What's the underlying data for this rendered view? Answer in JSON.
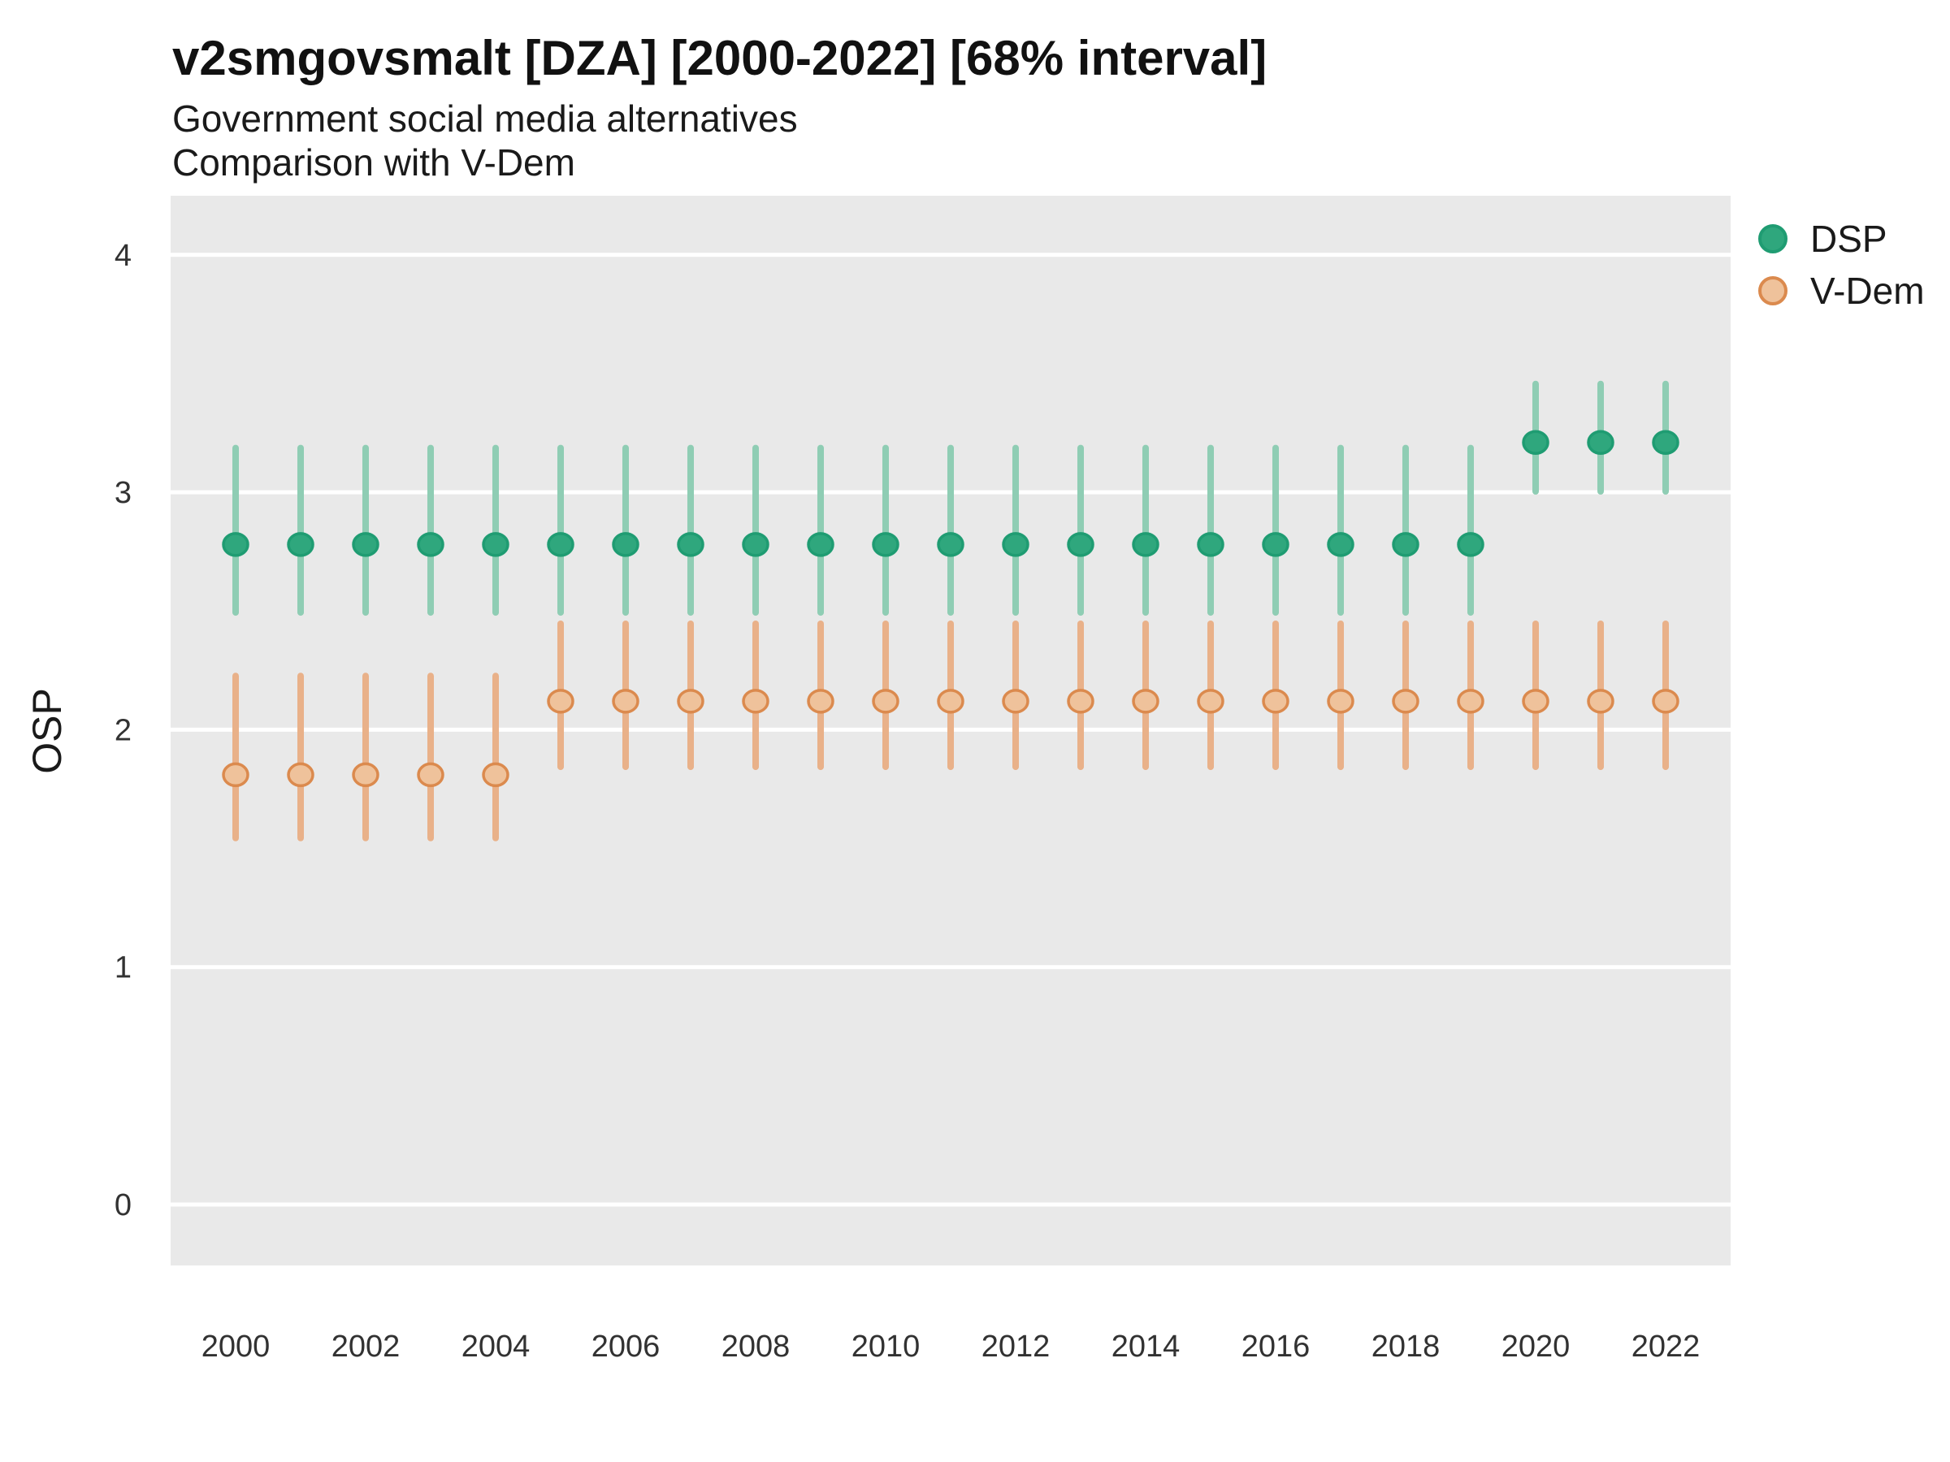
{
  "chart_data": {
    "type": "pointrange",
    "title": "v2smgovsmalt [DZA] [2000-2022] [68% interval]",
    "subtitle1": "Government social media alternatives",
    "subtitle2": "Comparison with V-Dem",
    "ylabel": "OSP",
    "xlabel": "",
    "x": [
      2000,
      2001,
      2002,
      2003,
      2004,
      2005,
      2006,
      2007,
      2008,
      2009,
      2010,
      2011,
      2012,
      2013,
      2014,
      2015,
      2016,
      2017,
      2018,
      2019,
      2020,
      2021,
      2022
    ],
    "x_tick_labels": [
      "2000",
      "2002",
      "2004",
      "2006",
      "2008",
      "2010",
      "2012",
      "2014",
      "2016",
      "2018",
      "2020",
      "2022"
    ],
    "x_tick_years": [
      2000,
      2002,
      2004,
      2006,
      2008,
      2010,
      2012,
      2014,
      2016,
      2018,
      2020,
      2022
    ],
    "y_tick_labels": [
      "0",
      "1",
      "2",
      "3",
      "4"
    ],
    "y_tick_values": [
      0,
      1,
      2,
      3,
      4
    ],
    "ylim": [
      -0.26,
      4.25
    ],
    "grid": "horizontal-major-only",
    "legend_position": "right-top",
    "panel_bg": "#E9E9E9",
    "grid_color": "#FFFFFF",
    "series": [
      {
        "name": "DSP",
        "bar_color": "#8FCDB4",
        "point_fill": "#2FA77D",
        "point_stroke": "#1F9C72",
        "est": [
          2.78,
          2.78,
          2.78,
          2.78,
          2.78,
          2.78,
          2.78,
          2.78,
          2.78,
          2.78,
          2.78,
          2.78,
          2.78,
          2.78,
          2.78,
          2.78,
          2.78,
          2.78,
          2.78,
          2.78,
          3.21,
          3.21,
          3.21
        ],
        "lo": [
          2.48,
          2.48,
          2.48,
          2.48,
          2.48,
          2.48,
          2.48,
          2.48,
          2.48,
          2.48,
          2.48,
          2.48,
          2.48,
          2.48,
          2.48,
          2.48,
          2.48,
          2.48,
          2.48,
          2.48,
          2.99,
          2.99,
          2.99
        ],
        "hi": [
          3.2,
          3.2,
          3.2,
          3.2,
          3.2,
          3.2,
          3.2,
          3.2,
          3.2,
          3.2,
          3.2,
          3.2,
          3.2,
          3.2,
          3.2,
          3.2,
          3.2,
          3.2,
          3.2,
          3.2,
          3.47,
          3.47,
          3.47
        ]
      },
      {
        "name": "V-Dem",
        "bar_color": "#E9B189",
        "point_fill": "#EFC29B",
        "point_stroke": "#DB8A4E",
        "est": [
          1.81,
          1.81,
          1.81,
          1.81,
          1.81,
          2.12,
          2.12,
          2.12,
          2.12,
          2.12,
          2.12,
          2.12,
          2.12,
          2.12,
          2.12,
          2.12,
          2.12,
          2.12,
          2.12,
          2.12,
          2.12,
          2.12,
          2.12
        ],
        "lo": [
          1.53,
          1.53,
          1.53,
          1.53,
          1.53,
          1.83,
          1.83,
          1.83,
          1.83,
          1.83,
          1.83,
          1.83,
          1.83,
          1.83,
          1.83,
          1.83,
          1.83,
          1.83,
          1.83,
          1.83,
          1.83,
          1.83,
          1.83
        ],
        "hi": [
          2.24,
          2.24,
          2.24,
          2.24,
          2.24,
          2.46,
          2.46,
          2.46,
          2.46,
          2.46,
          2.46,
          2.46,
          2.46,
          2.46,
          2.46,
          2.46,
          2.46,
          2.46,
          2.46,
          2.46,
          2.46,
          2.46,
          2.46
        ]
      }
    ]
  }
}
